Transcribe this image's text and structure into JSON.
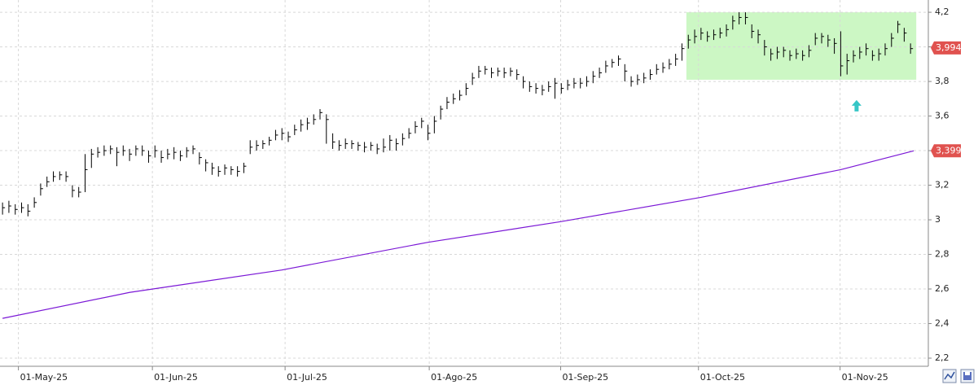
{
  "chart_data": {
    "type": "ohlc",
    "xlim": [
      -0.4,
      145.8
    ],
    "ylim": [
      2.153,
      4.271
    ],
    "xticks": [
      {
        "value": 2.5,
        "label": "01-May-25"
      },
      {
        "value": 23.6,
        "label": "01-Jun-25"
      },
      {
        "value": 44.5,
        "label": "01-Jul-25"
      },
      {
        "value": 67.2,
        "label": "01-Ago-25"
      },
      {
        "value": 87.9,
        "label": "01-Sep-25"
      },
      {
        "value": 109.6,
        "label": "01-Oct-25"
      },
      {
        "value": 131.9,
        "label": "01-Nov-25"
      }
    ],
    "yticks": [
      {
        "value": 4.2,
        "label": "4,2"
      },
      4,
      {
        "value": 3.8,
        "label": "3,8"
      },
      {
        "value": 3.6,
        "label": "3,6"
      },
      {
        "value": 3.4,
        "label": "3,4"
      },
      {
        "value": 3.2,
        "label": "3,2"
      },
      3,
      {
        "value": 2.8,
        "label": "2,8"
      },
      {
        "value": 2.6,
        "label": "2,6"
      },
      {
        "value": 2.4,
        "label": "2,4"
      },
      {
        "value": 2.2,
        "label": "2,2"
      }
    ],
    "grid": true,
    "bar_color": "#000000",
    "high": [
      3.1,
      3.11,
      3.09,
      3.1,
      3.09,
      3.13,
      3.21,
      3.25,
      3.28,
      3.28,
      3.28,
      3.2,
      3.19,
      3.38,
      3.41,
      3.42,
      3.43,
      3.43,
      3.42,
      3.43,
      3.41,
      3.43,
      3.43,
      3.4,
      3.43,
      3.4,
      3.41,
      3.42,
      3.4,
      3.42,
      3.43,
      3.39,
      3.35,
      3.33,
      3.31,
      3.32,
      3.31,
      3.31,
      3.33,
      3.46,
      3.46,
      3.46,
      3.48,
      3.52,
      3.53,
      3.51,
      3.55,
      3.58,
      3.59,
      3.61,
      3.64,
      3.61,
      3.5,
      3.46,
      3.47,
      3.46,
      3.45,
      3.45,
      3.45,
      3.44,
      3.47,
      3.49,
      3.47,
      3.5,
      3.53,
      3.57,
      3.59,
      3.55,
      3.6,
      3.66,
      3.71,
      3.73,
      3.75,
      3.79,
      3.85,
      3.89,
      3.89,
      3.88,
      3.88,
      3.88,
      3.88,
      3.87,
      3.83,
      3.8,
      3.79,
      3.78,
      3.8,
      3.82,
      3.79,
      3.81,
      3.82,
      3.82,
      3.83,
      3.86,
      3.88,
      3.92,
      3.93,
      3.95,
      3.9,
      3.83,
      3.84,
      3.85,
      3.87,
      3.9,
      3.91,
      3.93,
      3.96,
      4.02,
      4.07,
      4.1,
      4.11,
      4.09,
      4.1,
      4.11,
      4.13,
      4.18,
      4.2,
      4.2,
      4.13,
      4.1,
      4.04,
      3.99,
      4.0,
      4.0,
      3.98,
      3.99,
      3.98,
      4.01,
      4.08,
      4.08,
      4.07,
      4.05,
      4.09,
      3.96,
      3.98,
      4.0,
      4.02,
      3.98,
      3.99,
      4.02,
      4.08,
      4.15,
      4.11,
      4.02
    ],
    "low": [
      3.03,
      3.04,
      3.03,
      3.04,
      3.02,
      3.07,
      3.14,
      3.19,
      3.22,
      3.23,
      3.22,
      3.13,
      3.13,
      3.16,
      3.3,
      3.36,
      3.37,
      3.38,
      3.31,
      3.37,
      3.34,
      3.37,
      3.37,
      3.33,
      3.36,
      3.33,
      3.35,
      3.35,
      3.34,
      3.36,
      3.38,
      3.32,
      3.28,
      3.26,
      3.25,
      3.26,
      3.26,
      3.25,
      3.27,
      3.38,
      3.4,
      3.41,
      3.43,
      3.46,
      3.46,
      3.45,
      3.49,
      3.51,
      3.52,
      3.55,
      3.58,
      3.44,
      3.41,
      3.4,
      3.41,
      3.41,
      3.4,
      3.39,
      3.4,
      3.38,
      3.39,
      3.4,
      3.4,
      3.43,
      3.47,
      3.5,
      3.53,
      3.46,
      3.5,
      3.58,
      3.64,
      3.67,
      3.69,
      3.72,
      3.78,
      3.82,
      3.84,
      3.82,
      3.83,
      3.82,
      3.83,
      3.81,
      3.76,
      3.74,
      3.73,
      3.72,
      3.74,
      3.7,
      3.73,
      3.75,
      3.76,
      3.76,
      3.77,
      3.79,
      3.82,
      3.85,
      3.88,
      3.89,
      3.8,
      3.77,
      3.78,
      3.79,
      3.81,
      3.84,
      3.85,
      3.87,
      3.89,
      3.92,
      3.99,
      4.02,
      4.04,
      4.03,
      4.04,
      4.05,
      4.06,
      4.1,
      4.13,
      4.13,
      4.05,
      4.02,
      3.95,
      3.92,
      3.93,
      3.94,
      3.92,
      3.93,
      3.92,
      3.94,
      4.01,
      4.02,
      4.0,
      3.96,
      3.83,
      3.84,
      3.91,
      3.93,
      3.95,
      3.92,
      3.92,
      3.95,
      4.0,
      4.08,
      4.03,
      3.96
    ],
    "close": [
      3.07,
      3.08,
      3.06,
      3.07,
      3.05,
      3.1,
      3.18,
      3.22,
      3.25,
      3.26,
      3.25,
      3.17,
      3.16,
      3.29,
      3.38,
      3.39,
      3.4,
      3.41,
      3.39,
      3.4,
      3.38,
      3.41,
      3.4,
      3.37,
      3.4,
      3.36,
      3.38,
      3.39,
      3.37,
      3.4,
      3.41,
      3.36,
      3.33,
      3.3,
      3.28,
      3.3,
      3.29,
      3.28,
      3.31,
      3.42,
      3.43,
      3.44,
      3.46,
      3.49,
      3.5,
      3.48,
      3.52,
      3.55,
      3.56,
      3.58,
      3.62,
      3.58,
      3.45,
      3.43,
      3.44,
      3.44,
      3.43,
      3.42,
      3.43,
      3.41,
      3.42,
      3.46,
      3.44,
      3.47,
      3.5,
      3.54,
      3.57,
      3.5,
      3.57,
      3.64,
      3.68,
      3.7,
      3.72,
      3.76,
      3.82,
      3.86,
      3.87,
      3.85,
      3.86,
      3.85,
      3.86,
      3.84,
      3.8,
      3.77,
      3.76,
      3.75,
      3.77,
      3.79,
      3.76,
      3.78,
      3.79,
      3.79,
      3.8,
      3.83,
      3.85,
      3.89,
      3.91,
      3.93,
      3.86,
      3.8,
      3.81,
      3.82,
      3.84,
      3.87,
      3.88,
      3.9,
      3.93,
      3.99,
      4.04,
      4.06,
      4.08,
      4.06,
      4.07,
      4.08,
      4.1,
      4.15,
      4.17,
      4.17,
      4.09,
      4.07,
      4.0,
      3.96,
      3.97,
      3.98,
      3.95,
      3.96,
      3.95,
      3.98,
      4.05,
      4.06,
      4.04,
      4.02,
      3.89,
      3.92,
      3.95,
      3.97,
      3.99,
      3.95,
      3.96,
      3.99,
      4.05,
      4.13,
      4.08,
      3.99
    ],
    "moving_average": {
      "color": "#7b18d6",
      "x": [
        0,
        20,
        44,
        67,
        88,
        110,
        132,
        143.5
      ],
      "values": [
        2.43,
        2.58,
        2.71,
        2.87,
        2.99,
        3.13,
        3.29,
        3.399
      ]
    },
    "highlight": {
      "color": "#ccf7c4",
      "xlim": [
        107.7,
        143.9
      ],
      "ylim": [
        3.81,
        4.2
      ]
    },
    "signal": {
      "color": "#36c6c6",
      "x": 134.5,
      "value": 3.66
    },
    "price_labels": [
      {
        "value": 3.994,
        "label": "3,994"
      },
      {
        "value": 3.399,
        "label": "3,399"
      }
    ],
    "price_label_color": "#e0524f"
  }
}
